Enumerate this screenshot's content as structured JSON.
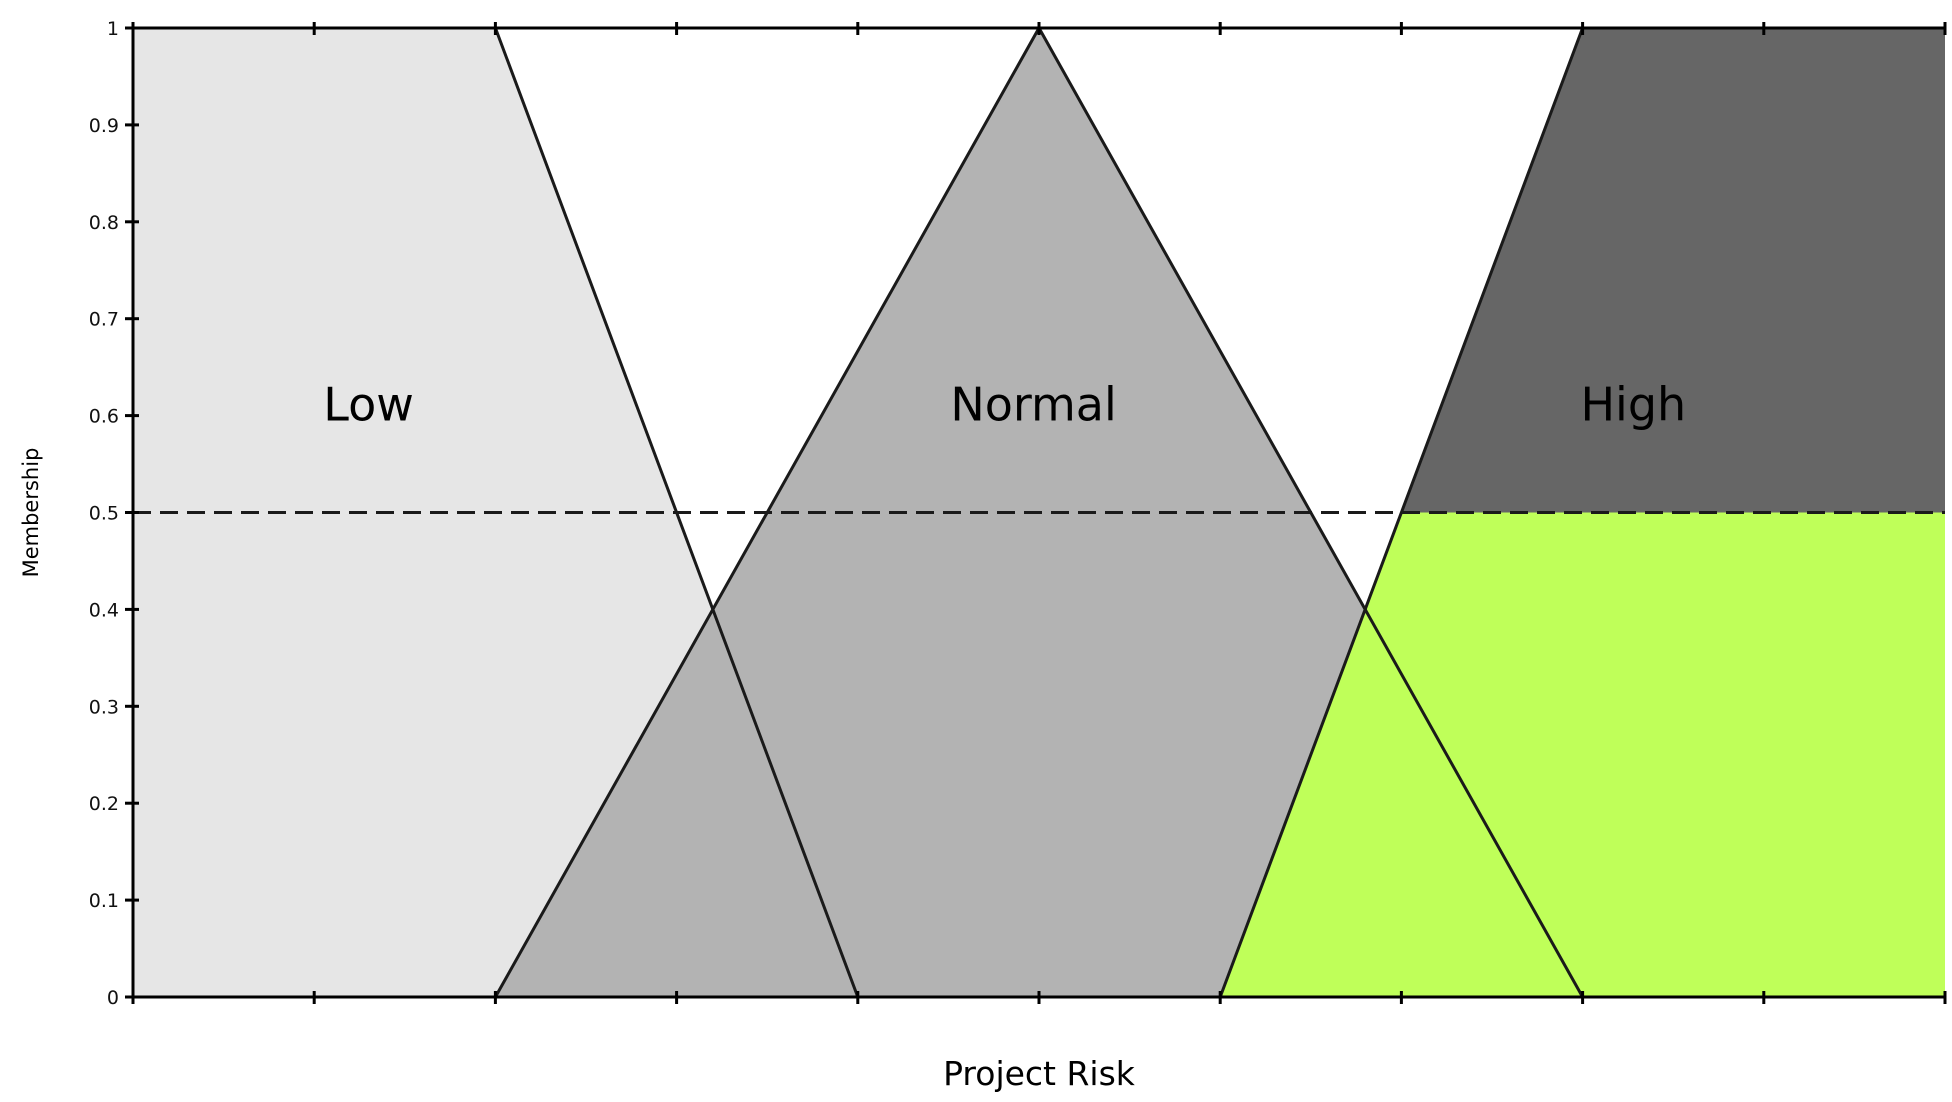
{
  "chart_data": {
    "type": "area",
    "title": "",
    "xlabel": "Project Risk",
    "ylabel": "Membership",
    "xlim": [
      0,
      10
    ],
    "ylim": [
      0,
      1
    ],
    "x_ticks": [
      0,
      1,
      2,
      3,
      4,
      5,
      6,
      7,
      8,
      9,
      10
    ],
    "y_ticks": [
      "0",
      "0.1",
      "0.2",
      "0.3",
      "0.4",
      "0.5",
      "0.6",
      "0.7",
      "0.8",
      "0.9",
      "1"
    ],
    "grid": false,
    "legend": "none",
    "series": [
      {
        "name": "Low",
        "shape": "trapezoid",
        "points": [
          [
            0,
            1
          ],
          [
            2,
            1
          ],
          [
            4,
            0
          ]
        ],
        "color": "#e6e6e6"
      },
      {
        "name": "Normal",
        "shape": "triangle",
        "points": [
          [
            2,
            0
          ],
          [
            5,
            1
          ],
          [
            8,
            0
          ]
        ],
        "color": "#b3b3b3"
      },
      {
        "name": "High",
        "shape": "trapezoid",
        "points": [
          [
            6,
            0
          ],
          [
            8,
            1
          ],
          [
            10,
            1
          ]
        ],
        "color": "#666666"
      }
    ],
    "threshold": {
      "value": 0.5,
      "style": "dashed",
      "applies_to": "High",
      "clipped_color": "#bfff59"
    }
  }
}
